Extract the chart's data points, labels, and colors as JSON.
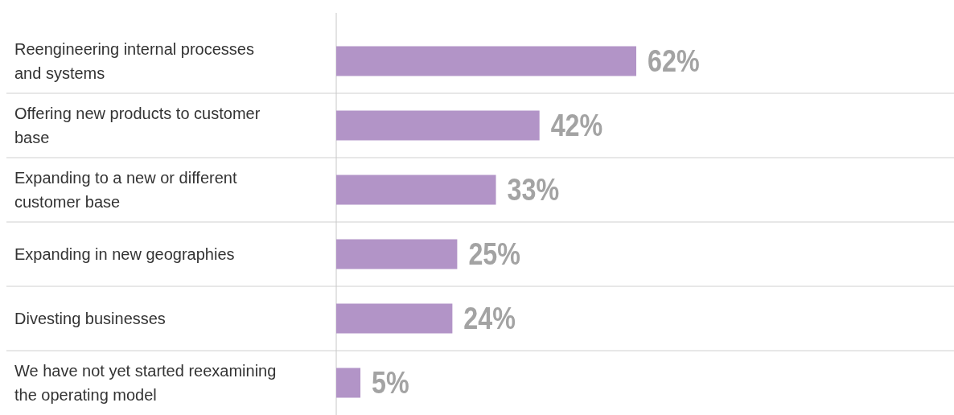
{
  "chart_data": {
    "type": "bar",
    "orientation": "horizontal",
    "categories": [
      "Reengineering internal processes and systems",
      "Offering new products to customer base",
      "Expanding to a new or different customer base",
      "Expanding in new geographies",
      "Divesting businesses",
      "We have not yet started reexamining the operating model"
    ],
    "values": [
      62,
      42,
      33,
      25,
      24,
      5
    ],
    "value_labels": [
      "62%",
      "42%",
      "33%",
      "25%",
      "24%",
      "5%"
    ],
    "color": "#b294c7"
  }
}
